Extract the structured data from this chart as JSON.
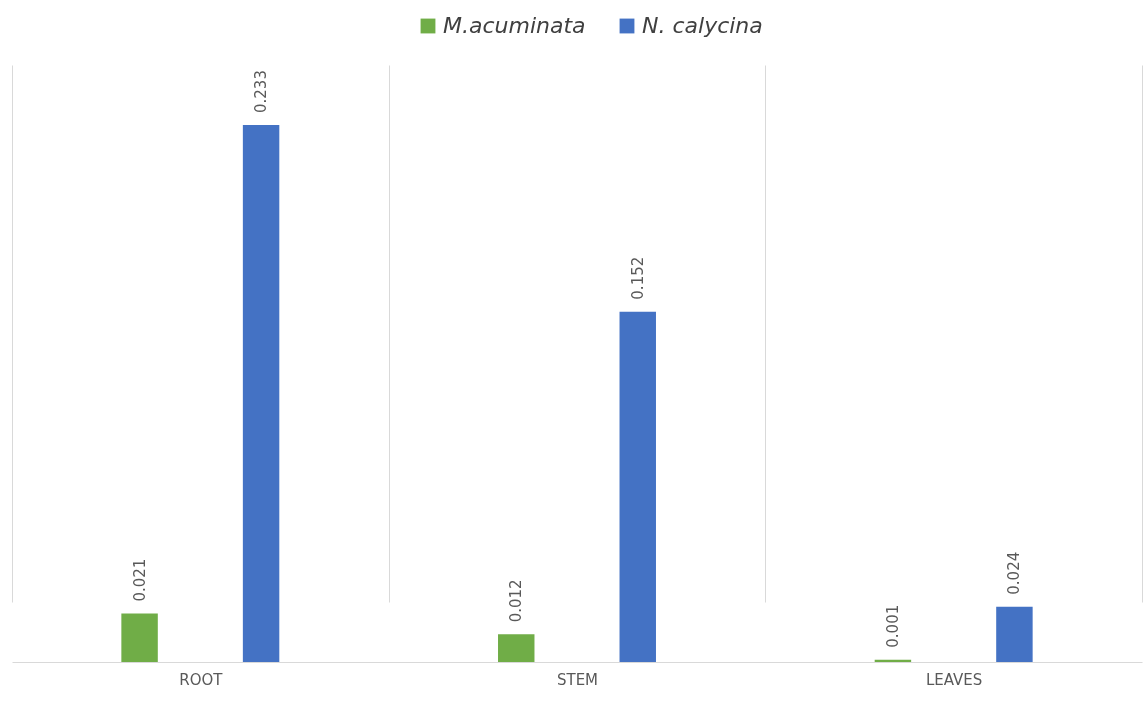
{
  "chart_data": {
    "type": "bar",
    "categories": [
      "ROOT",
      "STEM",
      "LEAVES"
    ],
    "series": [
      {
        "name": "M.acuminata",
        "color": "#70ad47",
        "values": [
          0.021,
          0.012,
          0.001
        ]
      },
      {
        "name": "N. calycina",
        "color": "#4472c4",
        "values": [
          0.233,
          0.152,
          0.024
        ]
      }
    ],
    "data_labels": true,
    "legend": "top",
    "grid": "x"
  }
}
